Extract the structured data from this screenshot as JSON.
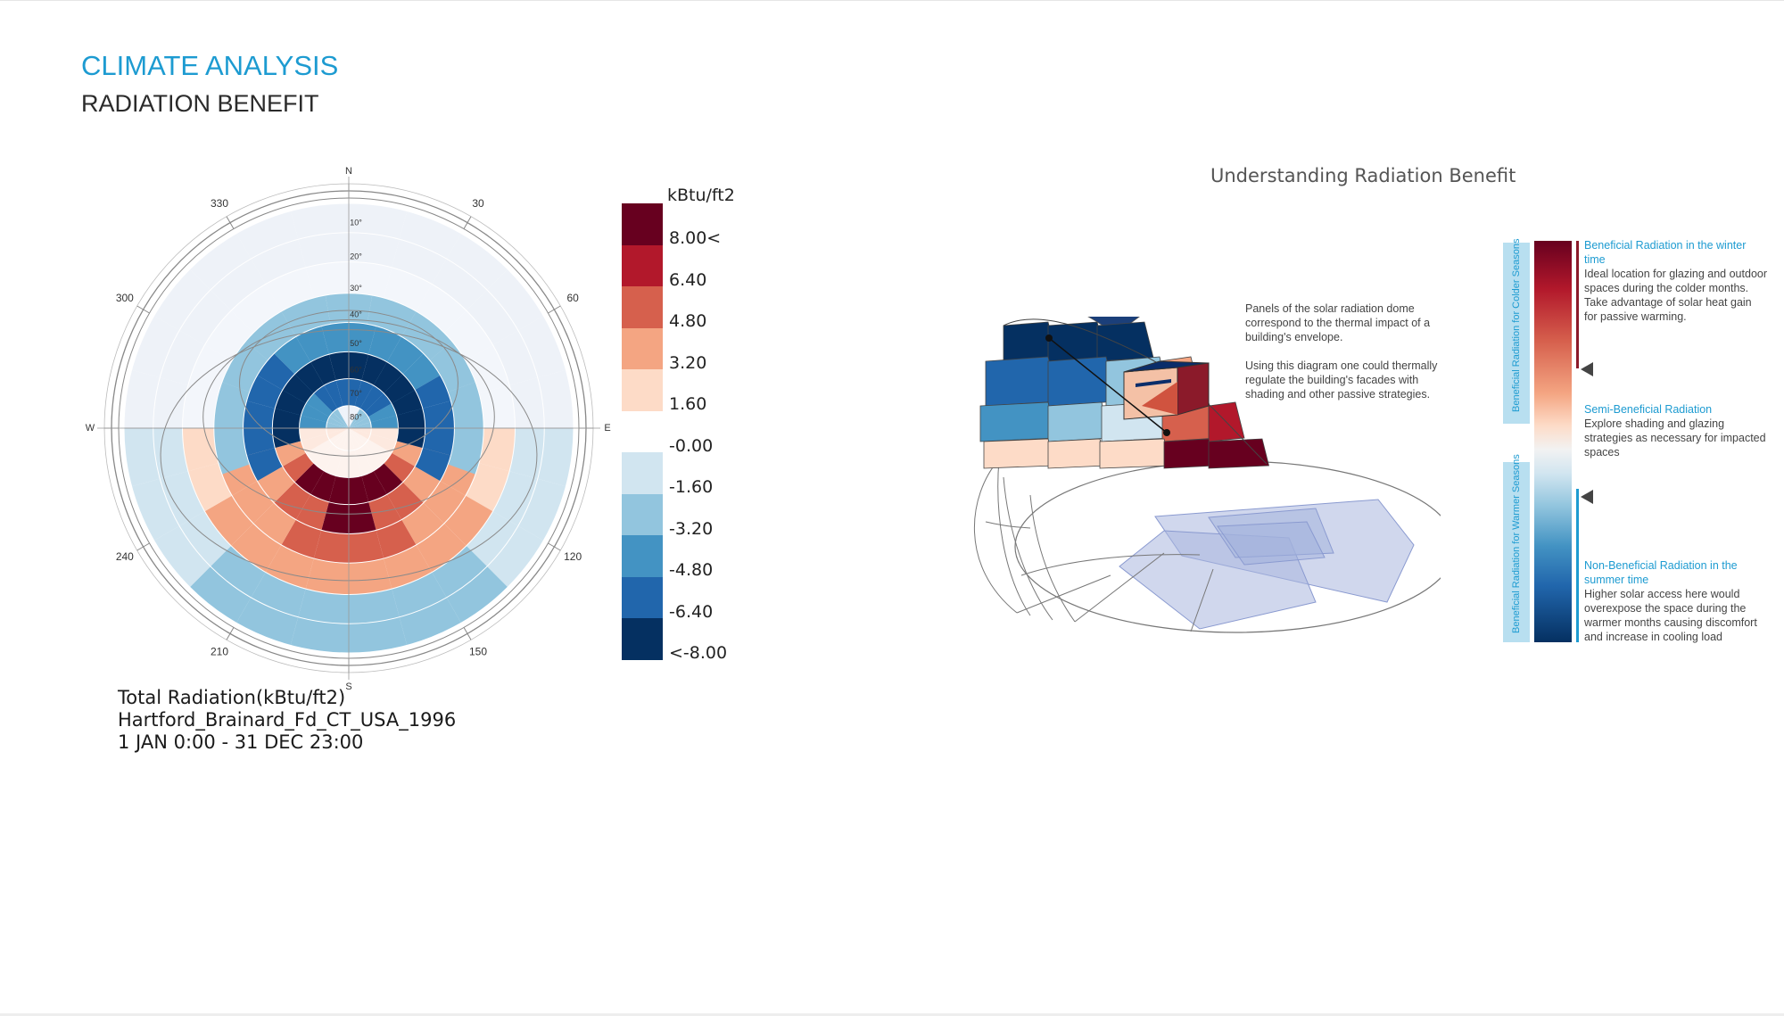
{
  "header": {
    "title": "CLIMATE ANALYSIS",
    "subtitle": "RADIATION BENEFIT"
  },
  "sky_dome": {
    "directions": {
      "north": "N",
      "east": "E",
      "south": "S",
      "west": "W"
    },
    "azimuth_labels": [
      "30",
      "60",
      "120",
      "150",
      "210",
      "240",
      "300",
      "330"
    ],
    "altitude_labels": [
      "10°",
      "20°",
      "30°",
      "40°",
      "50°",
      "60°",
      "70°",
      "80°"
    ]
  },
  "legend": {
    "unit": "kBtu/ft2",
    "labels": [
      "8.00<",
      "6.40",
      "4.80",
      "3.20",
      "1.60",
      "-0.00",
      "-1.60",
      "-3.20",
      "-4.80",
      "-6.40",
      "<-8.00"
    ],
    "colors": [
      "#67001f",
      "#b2182b",
      "#d6604d",
      "#f4a582",
      "#fddbc7",
      "#ffffff",
      "#d1e5f0",
      "#92c5de",
      "#4393c3",
      "#2166ac",
      "#053061"
    ]
  },
  "info": {
    "line1": "Total Radiation(kBtu/ft2)",
    "line2": "Hartford_Brainard_Fd_CT_USA_1996",
    "line3": "1 JAN 0:00 - 31 DEC 23:00"
  },
  "diagram": {
    "title": "Understanding Radiation Benefit",
    "description_1": "Panels of the solar radiation dome correspond to the thermal impact of a building's envelope.",
    "description_2": "Using this diagram one could thermally regulate the building's facades with shading and other passive strategies."
  },
  "key": {
    "colder_label": "Beneficial Radiation for Colder Seasons",
    "warmer_label": "Beneficial Radiation for Warmer Seasons",
    "winter_head": "Beneficial Radiation in the winter time",
    "winter_body": "Ideal location for glazing and outdoor spaces during the colder months. Take advantage of solar heat gain for passive warming.",
    "semi_head": "Semi-Beneficial Radiation",
    "semi_body": "Explore shading and glazing strategies as necessary for impacted spaces",
    "summer_head": "Non-Beneficial Radiation in the summer time",
    "summer_body": "Higher solar access here would overexpose the space during the warmer months causing discomfort and increase in cooling load"
  }
}
